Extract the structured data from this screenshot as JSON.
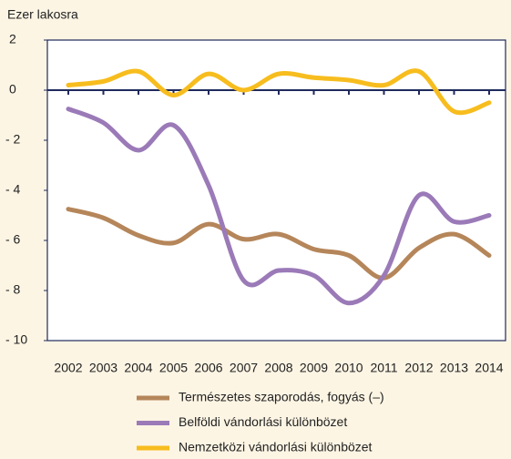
{
  "chart_data": {
    "type": "line",
    "y_axis_label": "Ezer lakosra",
    "categories": [
      "2002",
      "2003",
      "2004",
      "2005",
      "2006",
      "2007",
      "2008",
      "2009",
      "2010",
      "2011",
      "2012",
      "2013",
      "2014"
    ],
    "series": [
      {
        "name": "Természetes szaporodás, fogyás (–)",
        "color": "#b5865a",
        "values": [
          -4.75,
          -5.1,
          -5.8,
          -6.1,
          -5.35,
          -5.95,
          -5.75,
          -6.35,
          -6.6,
          -7.5,
          -6.3,
          -5.75,
          -6.6
        ]
      },
      {
        "name": "Belföldi vándorlási különbözet",
        "color": "#9b7ab8",
        "values": [
          -0.75,
          -1.3,
          -2.4,
          -1.4,
          -3.8,
          -7.6,
          -7.2,
          -7.4,
          -8.5,
          -7.4,
          -4.2,
          -5.25,
          -5.0
        ]
      },
      {
        "name": "Nemzetközi vándorlási különbözet",
        "color": "#f7bd1e",
        "values": [
          0.2,
          0.35,
          0.75,
          -0.2,
          0.65,
          0,
          0.65,
          0.5,
          0.4,
          0.2,
          0.75,
          -0.85,
          -0.5
        ]
      }
    ],
    "ylim": [
      -10,
      2
    ],
    "yticks": [
      {
        "value": -10,
        "label": "- 10"
      },
      {
        "value": -8,
        "label": "- 8"
      },
      {
        "value": -6,
        "label": "- 6"
      },
      {
        "value": -4,
        "label": "- 4"
      },
      {
        "value": -2,
        "label": "- 2"
      },
      0,
      2
    ],
    "legend": "bottom"
  }
}
